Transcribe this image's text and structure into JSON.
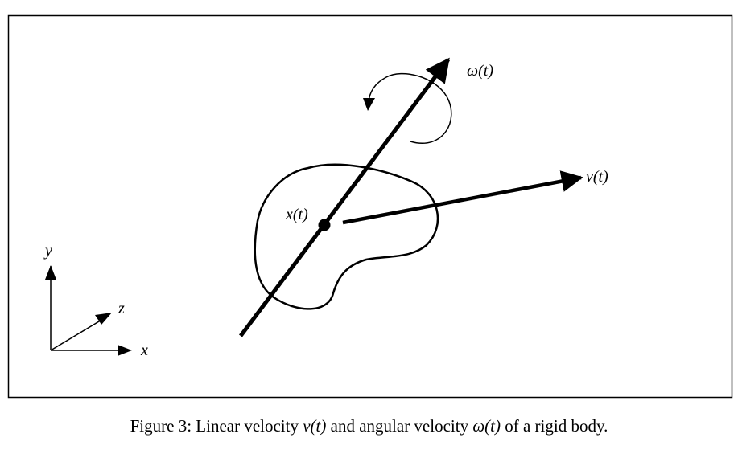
{
  "diagram": {
    "labels": {
      "omega": "ω(t)",
      "velocity": "v(t)",
      "position": "x(t)",
      "axis_x": "x",
      "axis_y": "y",
      "axis_z": "z"
    }
  },
  "caption": {
    "prefix": "Figure 3: Linear velocity ",
    "v_symbol": "v(t)",
    "middle": " and angular velocity ",
    "omega_symbol": "ω(t)",
    "suffix": " of a rigid body."
  }
}
